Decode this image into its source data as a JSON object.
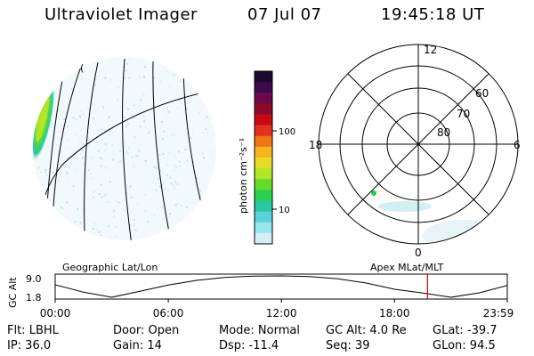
{
  "header": {
    "instrument": "Ultraviolet Imager",
    "date": "07 Jul 07",
    "time": "19:45:18 UT"
  },
  "colorbar": {
    "unit_label": "photon cm⁻²s⁻¹",
    "ticks": [
      "100",
      "10"
    ],
    "colors": [
      "#1a0a2e",
      "#3c0a4a",
      "#6a0a4a",
      "#8c0a28",
      "#c80a14",
      "#e0321e",
      "#f07814",
      "#f8b41e",
      "#e6dc28",
      "#b4e628",
      "#64dc28",
      "#28d250",
      "#28c8a0",
      "#5ad2dc",
      "#96e6f0",
      "#d2f0f4"
    ]
  },
  "polar": {
    "mlt_labels": {
      "top": "12",
      "left": "18",
      "right": "6",
      "bottom": "0"
    },
    "lat_labels": [
      "60",
      "70",
      "80"
    ]
  },
  "timeline": {
    "left_label": "Geographic Lat/Lon",
    "right_label": "Apex MLat/MLT",
    "y_axis_title": "GC Alt",
    "y_ticks": [
      "9.0",
      "1.8"
    ],
    "x_ticks": [
      "00:00",
      "06:00",
      "12:00",
      "18:00",
      "23:59"
    ],
    "marker_color": "#d00000"
  },
  "status": {
    "row1": [
      "Flt: LBHL",
      "Door: Open",
      "Mode: Normal",
      "GC Alt: 4.0 Re",
      "GLat: -39.7"
    ],
    "row2": [
      "IP: 36.0",
      "Gain: 14",
      "Dsp:  -11.4",
      "Seq: 39",
      "GLon:  94.5"
    ]
  },
  "chart_data": {
    "type": "line",
    "title": "GC Alt",
    "xlabel": "",
    "ylabel": "GC Alt",
    "x": [
      "00:00",
      "01:30",
      "03:00",
      "04:30",
      "06:00",
      "07:30",
      "09:00",
      "10:30",
      "12:00",
      "13:30",
      "15:00",
      "16:30",
      "18:00",
      "19:30",
      "21:00",
      "22:30",
      "23:59"
    ],
    "series": [
      {
        "values": [
          6.0,
          3.5,
          1.8,
          3.8,
          5.9,
          7.5,
          8.5,
          8.9,
          9.0,
          8.8,
          8.0,
          6.6,
          4.5,
          3.2,
          1.8,
          3.3,
          5.8
        ]
      }
    ],
    "ylim": [
      1.8,
      9.0
    ],
    "current_time": "19:45"
  }
}
